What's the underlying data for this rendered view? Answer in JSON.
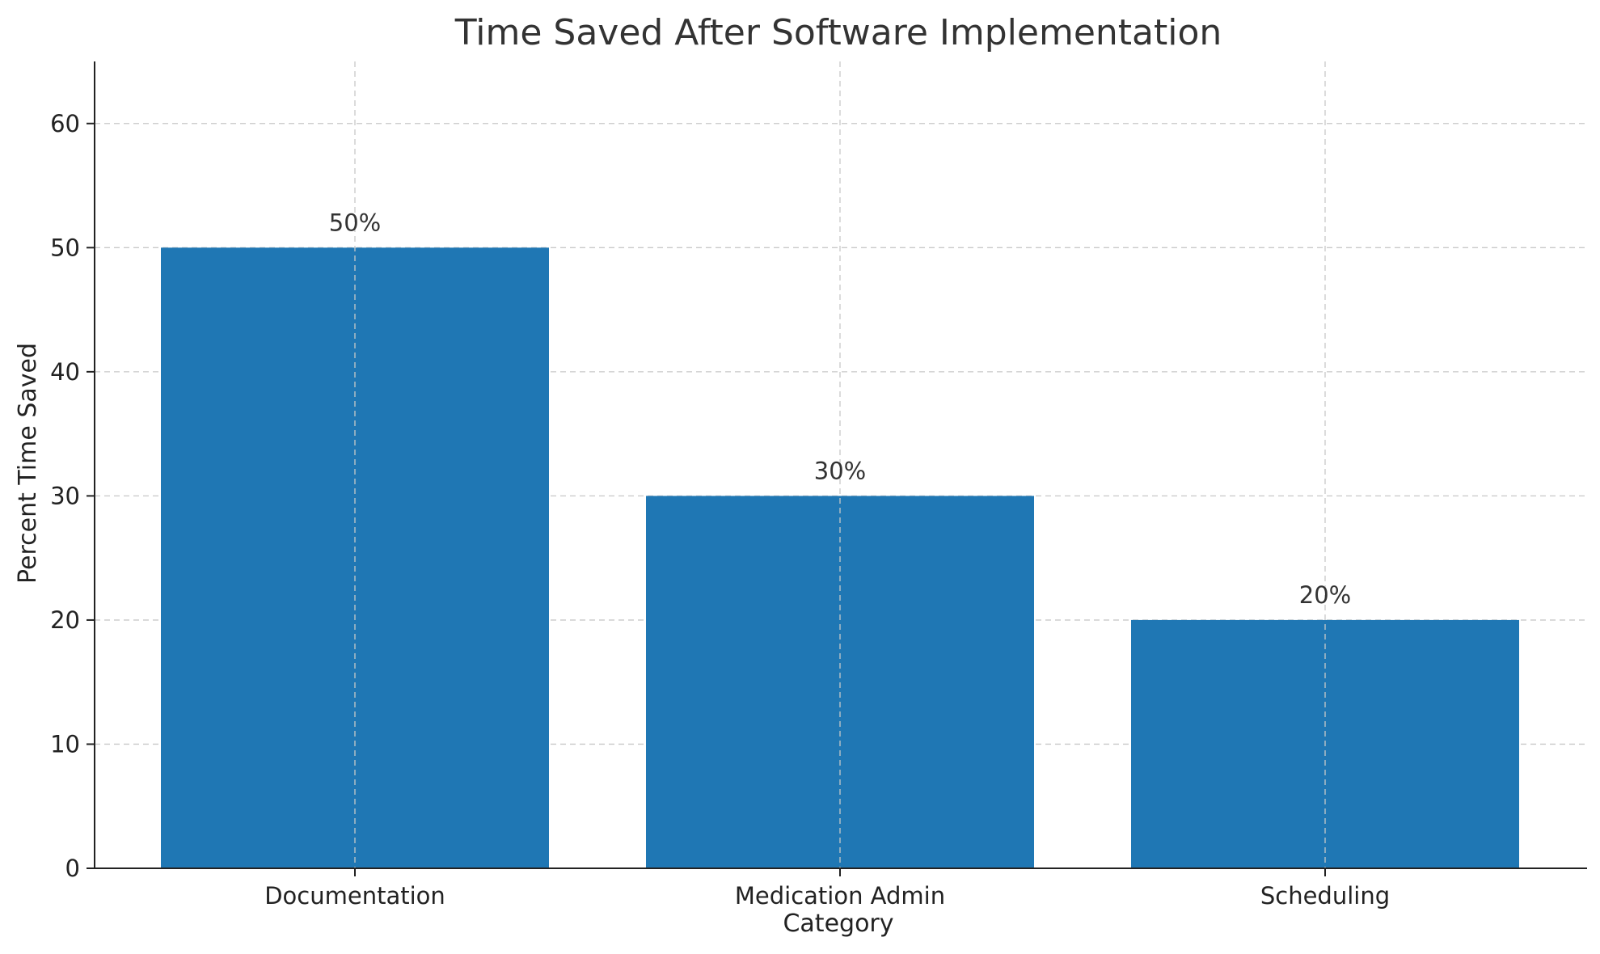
{
  "chart_data": {
    "type": "bar",
    "title": "Time Saved After Software Implementation",
    "xlabel": "Category",
    "ylabel": "Percent Time Saved",
    "categories": [
      "Documentation",
      "Medication Admin",
      "Scheduling"
    ],
    "values": [
      50,
      30,
      20
    ],
    "data_labels": [
      "50%",
      "30%",
      "20%"
    ],
    "ylim": [
      0,
      65
    ],
    "yticks": [
      0,
      10,
      20,
      30,
      40,
      50,
      60
    ],
    "grid": true,
    "bar_color": "#1f77b4"
  }
}
